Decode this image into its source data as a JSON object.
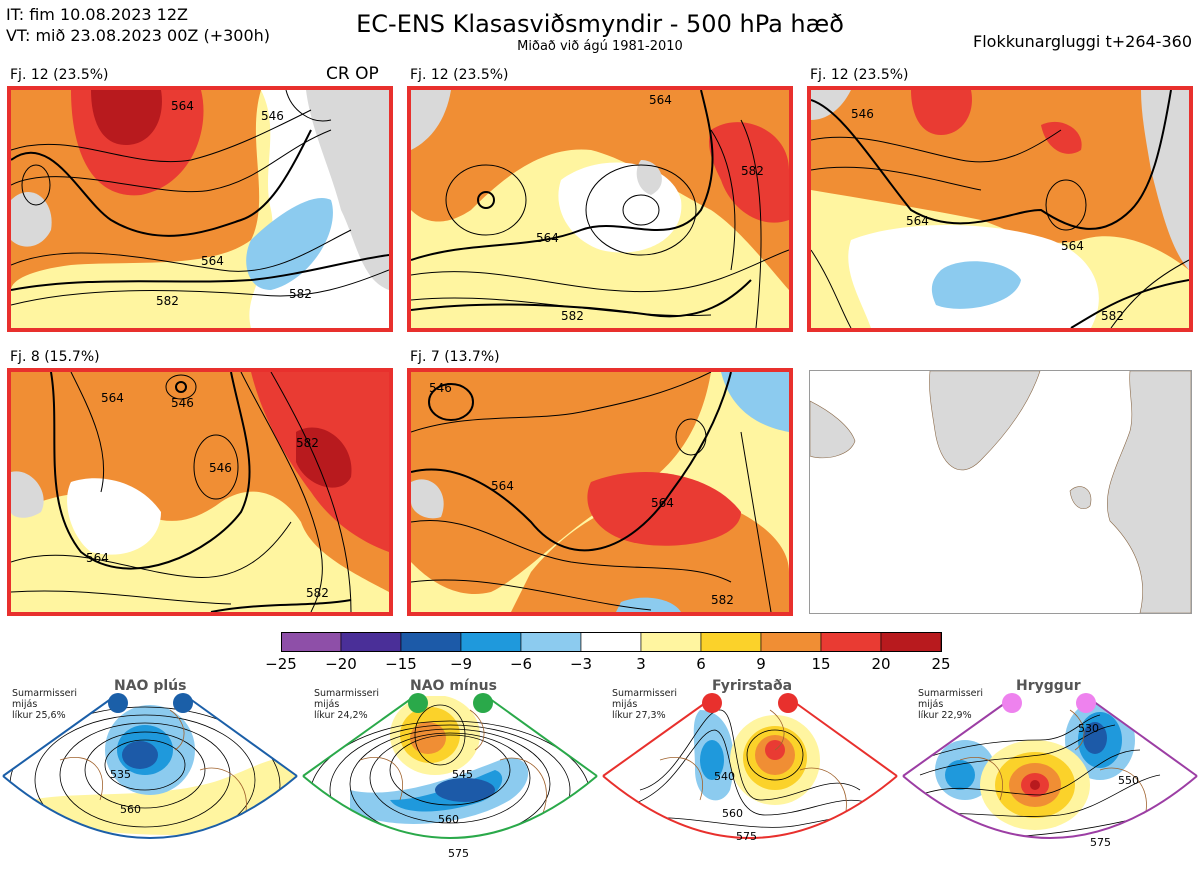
{
  "header": {
    "it_line": "IT: fim 10.08.2023 12Z",
    "vt_line": "VT: mið 23.08.2023 00Z  (+300h)",
    "title": "EC-ENS Klasasviðsmyndir - 500 hPa hæð",
    "subtitle": "Miðað við ágú 1981-2010",
    "window": "Flokkunargluggi t+264-360"
  },
  "panels": [
    {
      "label": "Fj. 12 (23.5%)",
      "tag": "CR OP",
      "contours": [
        "546",
        "564",
        "564",
        "582",
        "582"
      ]
    },
    {
      "label": "Fj. 12 (23.5%)",
      "contours": [
        "564",
        "564",
        "582",
        "582"
      ]
    },
    {
      "label": "Fj. 12 (23.5%)",
      "contours": [
        "546",
        "564",
        "564",
        "582"
      ]
    },
    {
      "label": "Fj. 8 (15.7%)",
      "contours": [
        "546",
        "564",
        "546",
        "564",
        "582",
        "582"
      ]
    },
    {
      "label": "Fj. 7 (13.7%)",
      "contours": [
        "546",
        "564",
        "564",
        "582"
      ]
    }
  ],
  "colorbar": {
    "ticks": [
      "−25",
      "−20",
      "−15",
      "−9",
      "−6",
      "−3",
      "3",
      "6",
      "9",
      "15",
      "20",
      "25"
    ],
    "colors": [
      "#8e4fa8",
      "#4a2f98",
      "#1c5aa8",
      "#1f99dc",
      "#8ccbef",
      "#ffffff",
      "#fff5a0",
      "#fbd22a",
      "#f08e34",
      "#e93b33",
      "#b81a1e"
    ]
  },
  "regimes": [
    {
      "title": "NAO plús",
      "note": [
        "Sumarmisseri",
        "mijás",
        "líkur 25,6%"
      ],
      "color": "#1b5fa8",
      "contours": [
        "535",
        "560"
      ]
    },
    {
      "title": "NAO mínus",
      "note": [
        "Sumarmisseri",
        "mijás",
        "líkur 24,2%"
      ],
      "color": "#2aa94a",
      "contours": [
        "545",
        "560",
        "575"
      ]
    },
    {
      "title": "Fyrirstaða",
      "note": [
        "Sumarmisseri",
        "mijás",
        "líkur 27,3%"
      ],
      "color": "#e8302d",
      "contours": [
        "540",
        "560",
        "575"
      ]
    },
    {
      "title": "Hryggur",
      "note": [
        "Sumarmisseri",
        "mijás",
        "líkur 22,9%"
      ],
      "color": "#9c3ea4",
      "contours": [
        "530",
        "550",
        "575"
      ]
    }
  ]
}
